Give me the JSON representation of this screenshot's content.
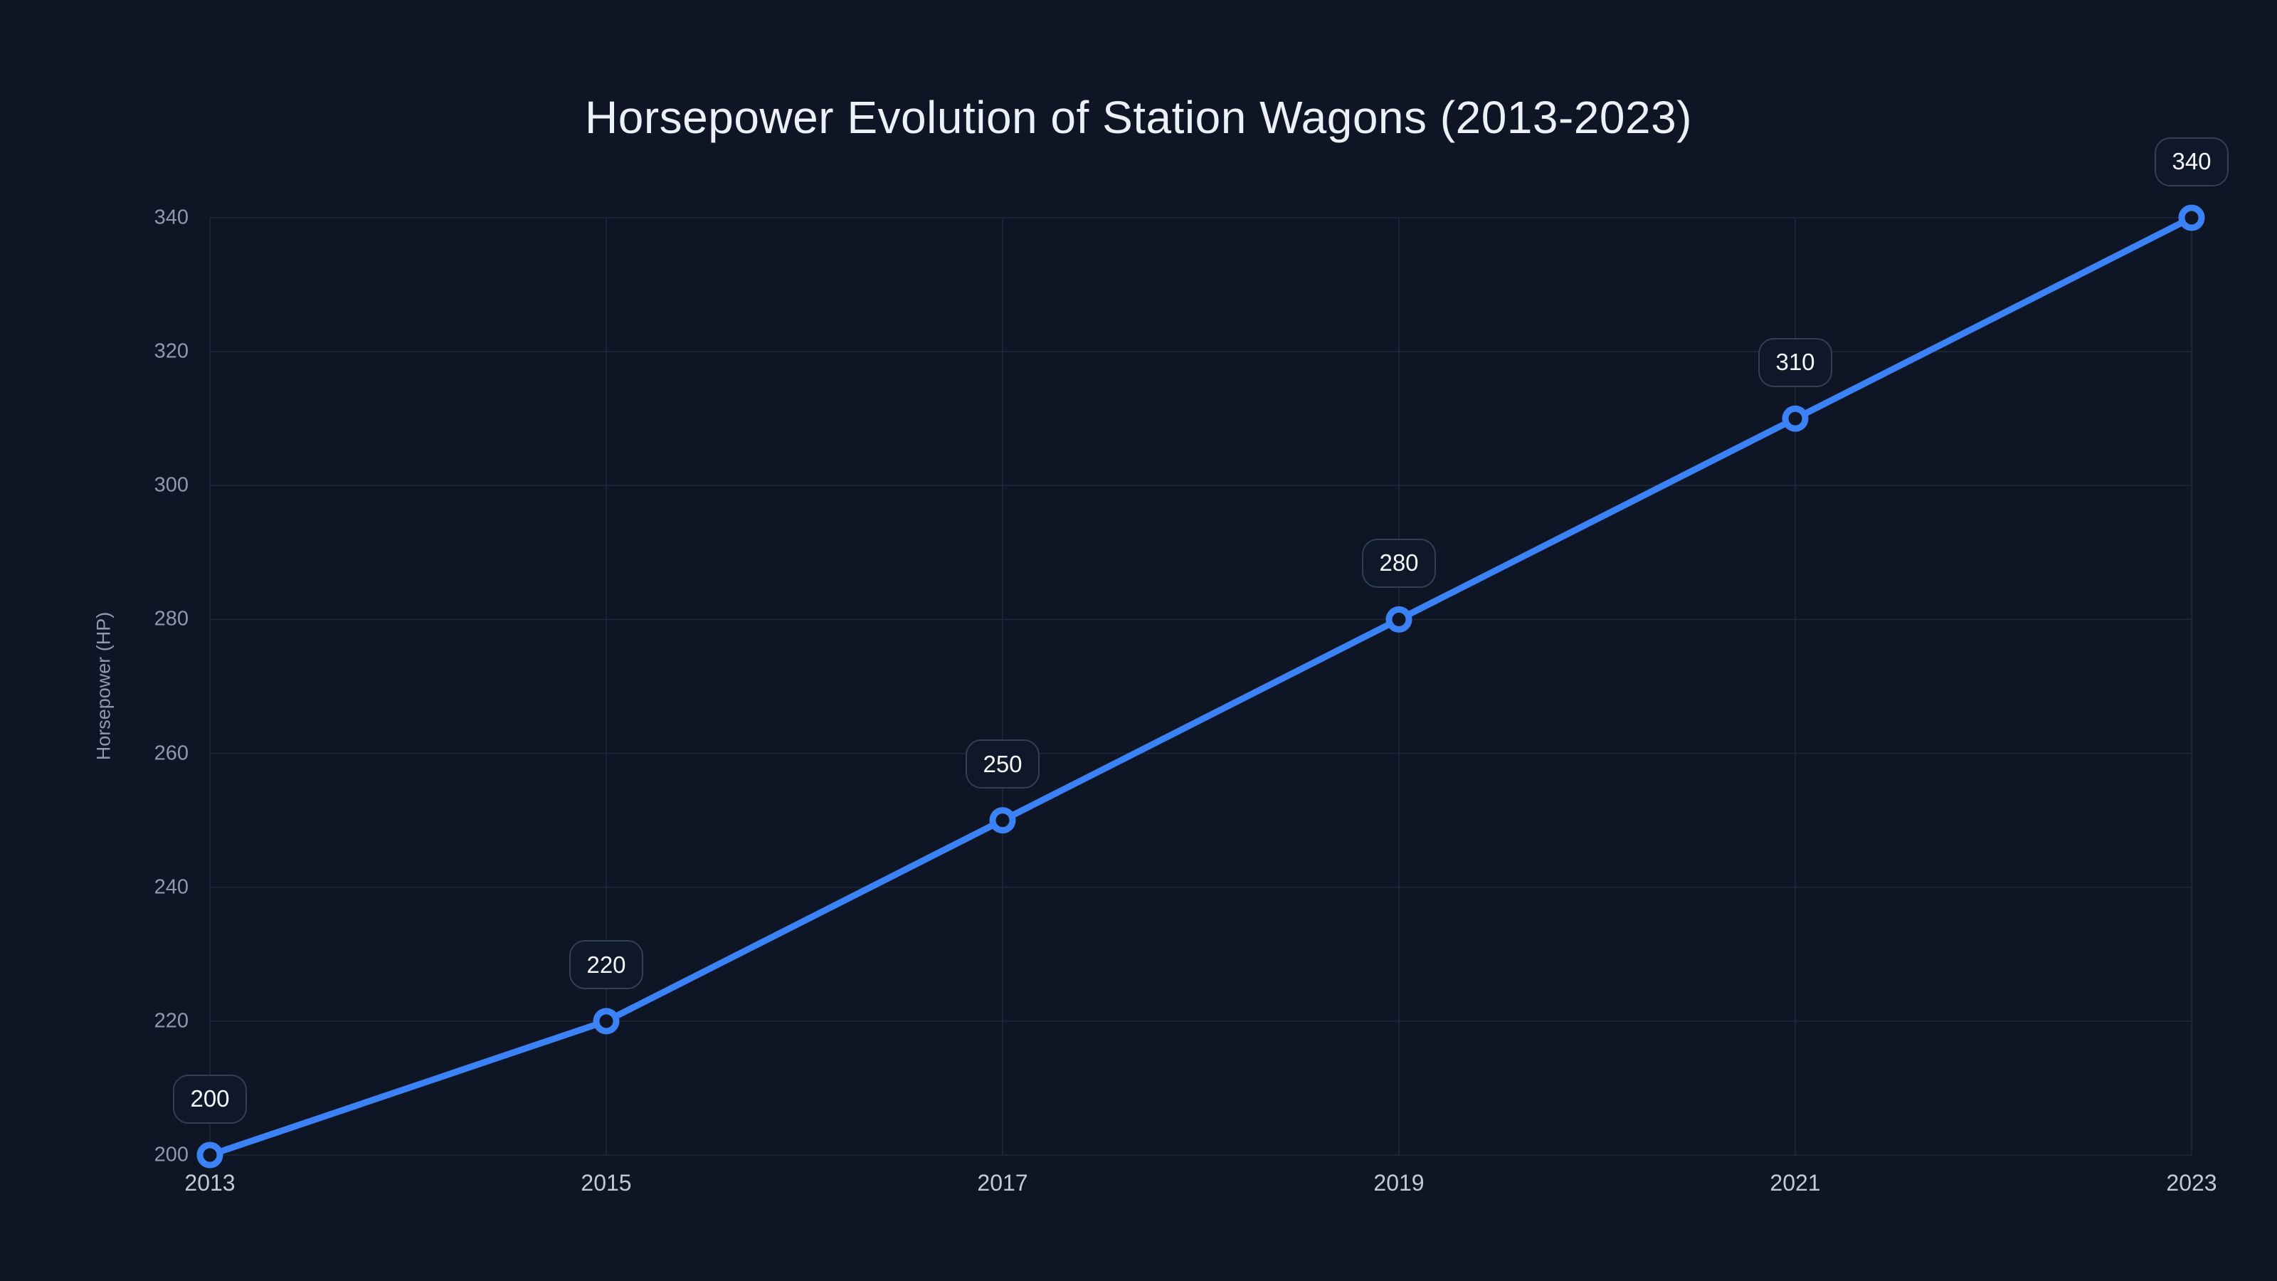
{
  "chart_data": {
    "type": "line",
    "title": "Horsepower Evolution of Station Wagons (2013-2023)",
    "xlabel": "",
    "ylabel": "Horsepower (HP)",
    "x": [
      2013,
      2015,
      2017,
      2019,
      2021,
      2023
    ],
    "x_tick_labels": [
      "2013",
      "2015",
      "2017",
      "2019",
      "2021",
      "2023"
    ],
    "y_ticks": [
      200,
      220,
      240,
      260,
      280,
      300,
      320,
      340
    ],
    "series": [
      {
        "name": "Horsepower",
        "values": [
          200,
          220,
          250,
          280,
          310,
          340
        ]
      }
    ],
    "point_labels": [
      "200",
      "220",
      "250",
      "280",
      "310",
      "340"
    ],
    "xlim": [
      2013,
      2023
    ],
    "ylim": [
      200,
      340
    ],
    "grid": true,
    "legend": false,
    "line_shape": "linear"
  },
  "colors": {
    "background": "#0e1626",
    "line": "#3b82f6",
    "marker_ring": "#3b82f6",
    "marker_fill": "#0e1626",
    "grid": "#1e2839",
    "title_text": "#edf1f7",
    "y_tick_text": "#8f99ad",
    "x_tick_text": "#c3c9d6",
    "axis_title_text": "#8e99ad",
    "label_box_fill": "#0f1829",
    "label_box_border": "#333e57",
    "label_text": "#f5f7fa"
  }
}
